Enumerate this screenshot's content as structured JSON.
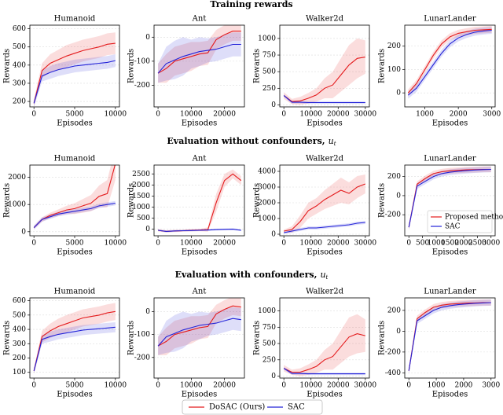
{
  "figure": {
    "row_titles": [
      {
        "text": "Training rewards"
      },
      {
        "text": "Evaluation without confounders,",
        "var": "u",
        "sub": "t"
      },
      {
        "text": "Evaluation with confounders,",
        "var": "u",
        "sub": "t"
      }
    ],
    "legend": [
      {
        "name": "DoSAC (Ours)",
        "color": "#e41a1c"
      },
      {
        "name": "SAC",
        "color": "#2323d8"
      }
    ]
  },
  "chart_data": [
    {
      "type": "line",
      "title": "Humanoid",
      "xlabel": "Episodes",
      "ylabel": "Rewards",
      "grid": true,
      "x": [
        0,
        1000,
        2000,
        3000,
        4000,
        5000,
        6000,
        7000,
        8000,
        9000,
        10000
      ],
      "xlim": [
        -500,
        10500
      ],
      "xticks": [
        0,
        5000,
        10000
      ],
      "ylim": [
        170,
        620
      ],
      "yticks": [
        200,
        300,
        400,
        500,
        600
      ],
      "series": [
        {
          "color": "#e41a1c",
          "values": [
            190,
            370,
            410,
            430,
            450,
            465,
            480,
            490,
            500,
            515,
            520
          ],
          "errors": [
            20,
            40,
            50,
            55,
            60,
            60,
            60,
            60,
            60,
            60,
            60
          ]
        },
        {
          "color": "#2323d8",
          "values": [
            190,
            340,
            360,
            375,
            385,
            395,
            400,
            405,
            410,
            415,
            425
          ],
          "errors": [
            20,
            30,
            35,
            35,
            35,
            35,
            35,
            35,
            35,
            35,
            35
          ]
        }
      ]
    },
    {
      "type": "line",
      "title": "Ant",
      "xlabel": "Episodes",
      "ylabel": "Rewards",
      "grid": true,
      "x": [
        0,
        2500,
        5000,
        7500,
        10000,
        12500,
        15000,
        17500,
        20000,
        22500,
        25000
      ],
      "xlim": [
        -1200,
        26000
      ],
      "xticks": [
        0,
        10000,
        20000
      ],
      "ylim": [
        -290,
        50
      ],
      "yticks": [
        -200,
        -100,
        0
      ],
      "series": [
        {
          "color": "#e41a1c",
          "values": [
            -150,
            -130,
            -100,
            -90,
            -80,
            -70,
            -65,
            -10,
            10,
            25,
            25
          ],
          "errors": [
            40,
            60,
            60,
            60,
            60,
            50,
            50,
            40,
            40,
            40,
            40
          ]
        },
        {
          "color": "#2323d8",
          "values": [
            -150,
            -110,
            -95,
            -80,
            -70,
            -60,
            -55,
            -50,
            -40,
            -30,
            -30
          ],
          "errors": [
            40,
            70,
            80,
            80,
            60,
            60,
            50,
            50,
            50,
            50,
            50
          ]
        }
      ]
    },
    {
      "type": "line",
      "title": "Walker2d",
      "xlabel": "Episodes",
      "ylabel": "Rewards",
      "grid": true,
      "x": [
        0,
        3000,
        6000,
        9000,
        12000,
        15000,
        18000,
        21000,
        24000,
        27000,
        30000
      ],
      "xlim": [
        -1500,
        31500
      ],
      "xticks": [
        0,
        10000,
        20000,
        30000
      ],
      "ylim": [
        -30,
        1200
      ],
      "yticks": [
        0,
        250,
        500,
        750,
        1000
      ],
      "series": [
        {
          "color": "#e41a1c",
          "values": [
            140,
            50,
            60,
            100,
            150,
            250,
            300,
            450,
            600,
            700,
            720
          ],
          "errors": [
            50,
            40,
            60,
            80,
            100,
            150,
            200,
            250,
            300,
            300,
            250
          ]
        },
        {
          "color": "#2323d8",
          "values": [
            140,
            40,
            40,
            35,
            35,
            35,
            35,
            35,
            35,
            35,
            35
          ],
          "errors": [
            20,
            20,
            20,
            20,
            20,
            20,
            20,
            20,
            20,
            20,
            20
          ]
        }
      ]
    },
    {
      "type": "line",
      "title": "LunarLander",
      "xlabel": "Episodes",
      "ylabel": "Rewards",
      "grid": true,
      "x": [
        500,
        750,
        1000,
        1250,
        1500,
        1750,
        2000,
        2250,
        2500,
        2750,
        3000
      ],
      "xlim": [
        400,
        3100
      ],
      "xticks": [
        1000,
        2000,
        3000
      ],
      "ylim": [
        -60,
        290
      ],
      "yticks": [
        0,
        100,
        200
      ],
      "series": [
        {
          "color": "#e41a1c",
          "values": [
            0,
            40,
            100,
            160,
            210,
            240,
            255,
            262,
            268,
            270,
            272
          ],
          "errors": [
            15,
            15,
            15,
            15,
            15,
            15,
            15,
            15,
            15,
            15,
            15
          ]
        },
        {
          "color": "#2323d8",
          "values": [
            -10,
            20,
            70,
            120,
            170,
            210,
            235,
            250,
            260,
            265,
            268
          ],
          "errors": [
            15,
            15,
            15,
            15,
            15,
            15,
            15,
            15,
            15,
            15,
            15
          ]
        }
      ]
    },
    {
      "type": "line",
      "title": "Humanoid",
      "xlabel": "Episodes",
      "ylabel": "Rewards",
      "grid": true,
      "x": [
        0,
        1000,
        2000,
        3000,
        4000,
        5000,
        6000,
        7000,
        8000,
        9000,
        10000
      ],
      "xlim": [
        -500,
        10500
      ],
      "xticks": [
        0,
        5000,
        10000
      ],
      "ylim": [
        -150,
        2450
      ],
      "yticks": [
        0,
        1000,
        2000
      ],
      "series": [
        {
          "color": "#e41a1c",
          "values": [
            150,
            450,
            600,
            700,
            800,
            850,
            950,
            1050,
            1300,
            1400,
            2500
          ],
          "errors": [
            50,
            80,
            100,
            120,
            150,
            200,
            250,
            300,
            400,
            500,
            600
          ]
        },
        {
          "color": "#2323d8",
          "values": [
            150,
            450,
            550,
            650,
            700,
            750,
            800,
            850,
            950,
            1000,
            1050
          ],
          "errors": [
            80,
            80,
            80,
            80,
            80,
            80,
            80,
            80,
            80,
            80,
            80
          ]
        }
      ]
    },
    {
      "type": "line",
      "title": "Ant",
      "xlabel": "Episodes",
      "ylabel": "Rewards",
      "grid": true,
      "x": [
        0,
        2500,
        5000,
        7500,
        10000,
        12500,
        15000,
        17500,
        20000,
        22500,
        25000
      ],
      "xlim": [
        -1200,
        26000
      ],
      "xticks": [
        0,
        10000,
        20000
      ],
      "ylim": [
        -300,
        2900
      ],
      "yticks": [
        0,
        500,
        1000,
        1500,
        2000,
        2500
      ],
      "series": [
        {
          "color": "#e41a1c",
          "values": [
            -50,
            -100,
            -80,
            -70,
            -50,
            -40,
            -20,
            1200,
            2200,
            2500,
            2200
          ],
          "errors": [
            50,
            50,
            50,
            50,
            50,
            50,
            100,
            400,
            300,
            200,
            200
          ]
        },
        {
          "color": "#2323d8",
          "values": [
            -50,
            -100,
            -80,
            -70,
            -60,
            -50,
            -40,
            -20,
            -10,
            0,
            -50
          ],
          "errors": [
            40,
            40,
            40,
            40,
            40,
            40,
            40,
            40,
            40,
            40,
            40
          ]
        }
      ]
    },
    {
      "type": "line",
      "title": "Walker2d",
      "xlabel": "Episodes",
      "ylabel": "Rewards",
      "grid": true,
      "x": [
        0,
        3000,
        6000,
        9000,
        12000,
        15000,
        18000,
        21000,
        24000,
        27000,
        30000
      ],
      "xlim": [
        -1500,
        31500
      ],
      "xticks": [
        0,
        10000,
        20000,
        30000
      ],
      "ylim": [
        -100,
        4400
      ],
      "yticks": [
        0,
        1000,
        2000,
        3000,
        4000
      ],
      "series": [
        {
          "color": "#e41a1c",
          "values": [
            200,
            300,
            800,
            1500,
            1800,
            2200,
            2500,
            2800,
            2600,
            3000,
            3200
          ],
          "errors": [
            100,
            200,
            400,
            500,
            500,
            600,
            700,
            800,
            700,
            700,
            600
          ]
        },
        {
          "color": "#2323d8",
          "values": [
            100,
            200,
            300,
            400,
            400,
            450,
            500,
            550,
            600,
            700,
            750
          ],
          "errors": [
            100,
            100,
            100,
            100,
            100,
            100,
            100,
            100,
            100,
            100,
            100
          ]
        }
      ]
    },
    {
      "type": "line",
      "title": "LunarLander",
      "xlabel": "Episodes",
      "ylabel": "Rewards",
      "grid": true,
      "legend": "lower right",
      "x": [
        0,
        300,
        600,
        900,
        1200,
        1500,
        1800,
        2100,
        2400,
        2700,
        3000
      ],
      "xlim": [
        -150,
        3150
      ],
      "xticks": [
        0,
        500,
        1000,
        1500,
        2000,
        2500,
        3000
      ],
      "ylim": [
        -420,
        320
      ],
      "yticks": [
        -200,
        0,
        200
      ],
      "series": [
        {
          "name": "Proposed method",
          "color": "#e41a1c",
          "values": [
            -330,
            120,
            180,
            230,
            250,
            260,
            265,
            270,
            272,
            275,
            275
          ],
          "errors": [
            30,
            30,
            30,
            30,
            30,
            30,
            30,
            30,
            30,
            30,
            30
          ]
        },
        {
          "name": "SAC",
          "color": "#2323d8",
          "values": [
            -330,
            100,
            150,
            200,
            230,
            245,
            255,
            262,
            268,
            272,
            275
          ],
          "errors": [
            30,
            30,
            30,
            30,
            30,
            30,
            30,
            30,
            30,
            30,
            30
          ]
        }
      ]
    },
    {
      "type": "line",
      "title": "Humanoid",
      "xlabel": "Episodes",
      "ylabel": "Rewards",
      "grid": true,
      "x": [
        0,
        1000,
        2000,
        3000,
        4000,
        5000,
        6000,
        7000,
        8000,
        9000,
        10000
      ],
      "xlim": [
        -500,
        10500
      ],
      "xticks": [
        0,
        5000,
        10000
      ],
      "ylim": [
        60,
        620
      ],
      "yticks": [
        100,
        200,
        300,
        400,
        500,
        600
      ],
      "series": [
        {
          "color": "#e41a1c",
          "values": [
            110,
            350,
            390,
            420,
            440,
            460,
            480,
            490,
            500,
            515,
            525
          ],
          "errors": [
            20,
            40,
            50,
            55,
            60,
            60,
            60,
            60,
            60,
            60,
            60
          ]
        },
        {
          "color": "#2323d8",
          "values": [
            110,
            330,
            350,
            365,
            375,
            385,
            395,
            400,
            405,
            410,
            415
          ],
          "errors": [
            20,
            30,
            35,
            35,
            35,
            35,
            35,
            35,
            35,
            35,
            35
          ]
        }
      ]
    },
    {
      "type": "line",
      "title": "Ant",
      "xlabel": "Episodes",
      "ylabel": "Rewards",
      "grid": true,
      "x": [
        0,
        2500,
        5000,
        7500,
        10000,
        12500,
        15000,
        17500,
        20000,
        22500,
        25000
      ],
      "xlim": [
        -1200,
        26000
      ],
      "xticks": [
        0,
        10000,
        20000
      ],
      "ylim": [
        -290,
        60
      ],
      "yticks": [
        -200,
        -100,
        0
      ],
      "series": [
        {
          "color": "#e41a1c",
          "values": [
            -150,
            -130,
            -100,
            -90,
            -80,
            -70,
            -65,
            -10,
            10,
            25,
            20
          ],
          "errors": [
            40,
            60,
            60,
            60,
            60,
            50,
            50,
            40,
            40,
            40,
            40
          ]
        },
        {
          "color": "#2323d8",
          "values": [
            -150,
            -110,
            -95,
            -80,
            -70,
            -60,
            -55,
            -50,
            -40,
            -30,
            -35
          ],
          "errors": [
            40,
            70,
            80,
            80,
            60,
            60,
            50,
            50,
            50,
            50,
            50
          ]
        }
      ]
    },
    {
      "type": "line",
      "title": "Walker2d",
      "xlabel": "Episodes",
      "ylabel": "Rewards",
      "grid": true,
      "x": [
        0,
        3000,
        6000,
        9000,
        12000,
        15000,
        18000,
        21000,
        24000,
        27000,
        30000
      ],
      "xlim": [
        -1500,
        31500
      ],
      "xticks": [
        0,
        10000,
        20000,
        30000
      ],
      "ylim": [
        -30,
        1200
      ],
      "yticks": [
        0,
        250,
        500,
        750,
        1000
      ],
      "series": [
        {
          "color": "#e41a1c",
          "values": [
            120,
            60,
            60,
            100,
            150,
            250,
            300,
            450,
            600,
            650,
            620
          ],
          "errors": [
            50,
            40,
            60,
            80,
            100,
            150,
            200,
            250,
            300,
            300,
            250
          ]
        },
        {
          "color": "#2323d8",
          "values": [
            120,
            40,
            40,
            35,
            35,
            35,
            35,
            35,
            35,
            35,
            35
          ],
          "errors": [
            20,
            20,
            20,
            20,
            20,
            20,
            20,
            20,
            20,
            20,
            20
          ]
        }
      ]
    },
    {
      "type": "line",
      "title": "LunarLander",
      "xlabel": "Episodes",
      "ylabel": "Rewards",
      "grid": true,
      "x": [
        0,
        300,
        600,
        900,
        1200,
        1500,
        1800,
        2100,
        2400,
        2700,
        3000
      ],
      "xlim": [
        -150,
        3150
      ],
      "xticks": [
        0,
        1000,
        2000,
        3000
      ],
      "ylim": [
        -450,
        320
      ],
      "yticks": [
        -400,
        -200,
        0,
        200
      ],
      "series": [
        {
          "color": "#e41a1c",
          "values": [
            -380,
            120,
            180,
            230,
            250,
            260,
            265,
            270,
            272,
            275,
            275
          ],
          "errors": [
            30,
            30,
            30,
            30,
            30,
            30,
            30,
            30,
            30,
            30,
            30
          ]
        },
        {
          "color": "#2323d8",
          "values": [
            -380,
            100,
            150,
            200,
            230,
            245,
            255,
            262,
            268,
            272,
            275
          ],
          "errors": [
            30,
            30,
            30,
            30,
            30,
            30,
            30,
            30,
            30,
            30,
            30
          ]
        }
      ]
    }
  ]
}
